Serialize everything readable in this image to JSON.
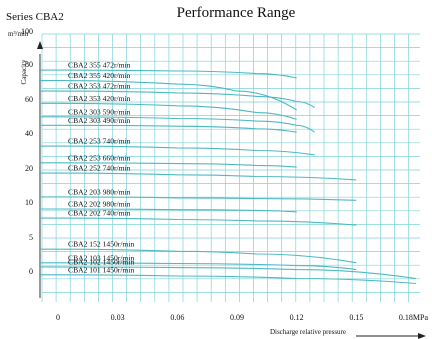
{
  "chart_data": {
    "type": "line",
    "title": "Performance Range",
    "series_name": "Series CBA2",
    "ylabel": "Capacity",
    "yunit": "m³/min",
    "xlabel": "Discharge relative pressure",
    "xunit": "0.18MPa",
    "xlim": [
      0,
      0.18
    ],
    "grid": true,
    "x_ticks": [
      "0",
      "0.03",
      "0.06",
      "0.09",
      "0.12",
      "0.15",
      ""
    ],
    "y_ticks": [
      "100",
      "80",
      "60",
      "40",
      "20",
      "10",
      "5",
      "0"
    ],
    "series": [
      {
        "name": "CBA2 355 472r/min",
        "x": [
          0,
          0.06,
          0.1,
          0.12
        ],
        "y": [
          76.5,
          76.0,
          74.5,
          72.0
        ]
      },
      {
        "name": "CBA2 355 420r/min",
        "x": [
          0,
          0.06,
          0.09,
          0.12
        ],
        "y": [
          70.5,
          68.5,
          64.5,
          53.5
        ]
      },
      {
        "name": "CBA2 353 472r/min",
        "x": [
          0,
          0.06,
          0.1,
          0.12,
          0.129
        ],
        "y": [
          64.5,
          63.5,
          61.5,
          58.5,
          55.0
        ]
      },
      {
        "name": "CBA2 353 420r/min",
        "x": [
          0,
          0.06,
          0.1,
          0.12
        ],
        "y": [
          57.5,
          56.0,
          52.0,
          48.0
        ]
      },
      {
        "name": "CBA2 303 590r/min",
        "x": [
          0,
          0.06,
          0.1,
          0.12,
          0.129
        ],
        "y": [
          49.5,
          48.5,
          47.0,
          44.5,
          40.5
        ]
      },
      {
        "name": "CBA2 303 490r/min",
        "x": [
          0,
          0.06,
          0.1,
          0.12
        ],
        "y": [
          44.5,
          44.0,
          42.5,
          40.5
        ]
      },
      {
        "name": "CBA2 253 740r/min",
        "x": [
          0,
          0.06,
          0.1,
          0.129
        ],
        "y": [
          32.5,
          31.5,
          30.0,
          27.5
        ]
      },
      {
        "name": "CBA2 253 660r/min",
        "x": [
          0,
          0.06,
          0.1,
          0.12
        ],
        "y": [
          23.0,
          22.5,
          21.5,
          20.5
        ]
      },
      {
        "name": "CBA2 252 740r/min",
        "x": [
          0,
          0.06,
          0.1,
          0.15
        ],
        "y": [
          18.5,
          18.0,
          17.5,
          16.5
        ]
      },
      {
        "name": "CBA2 203 980r/min",
        "x": [
          0,
          0.06,
          0.1,
          0.15
        ],
        "y": [
          11.5,
          11.2,
          11.0,
          10.5
        ]
      },
      {
        "name": "CBA2 202 980r/min",
        "x": [
          0,
          0.06,
          0.1,
          0.12
        ],
        "y": [
          9.0,
          8.9,
          8.8,
          8.6
        ]
      },
      {
        "name": "CBA2 202 740r/min",
        "x": [
          0,
          0.06,
          0.1,
          0.15
        ],
        "y": [
          7.7,
          7.5,
          7.3,
          6.7
        ]
      },
      {
        "name": "CBA2 152 1450r/min",
        "x": [
          0,
          0.06,
          0.1,
          0.15
        ],
        "y": [
          3.2,
          2.9,
          2.5,
          1.2
        ]
      },
      {
        "name": "CBA2 103 1450r/min",
        "x": [
          0,
          0.06,
          0.12,
          0.15
        ],
        "y": [
          1.2,
          1.1,
          0.8,
          0.2
        ]
      },
      {
        "name": "CBA2 102 1450r/min",
        "x": [
          0,
          0.06,
          0.12,
          0.18
        ],
        "y": [
          0.6,
          0.5,
          0.2,
          -0.6
        ]
      },
      {
        "name": "CBA2 101 1450r/min",
        "x": [
          0,
          0.06,
          0.12,
          0.18
        ],
        "y": [
          -0.3,
          -0.4,
          -0.6,
          -1.0
        ]
      }
    ]
  }
}
